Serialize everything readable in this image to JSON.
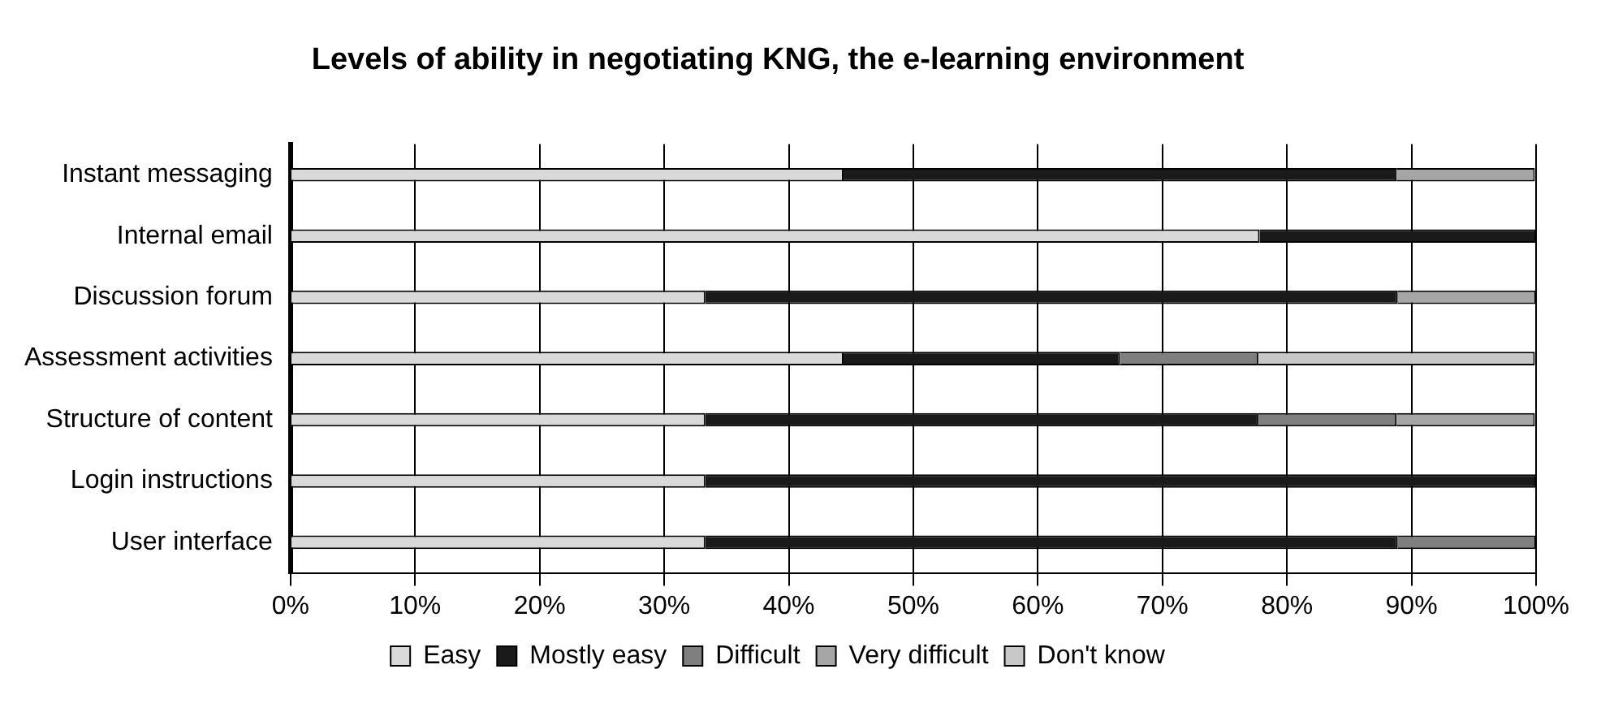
{
  "chart_data": {
    "type": "bar",
    "title": "Levels of ability in negotiating KNG, the e-learning environment",
    "orientation": "horizontal",
    "stacked": true,
    "categories": [
      "Instant messaging",
      "Internal email",
      "Discussion forum",
      "Assessment activities",
      "Structure of content",
      "Login instructions",
      "User interface"
    ],
    "series": [
      {
        "name": "Easy",
        "color": "#d9d9d9",
        "values": [
          44.4,
          77.8,
          33.3,
          44.4,
          33.3,
          33.3,
          33.3
        ]
      },
      {
        "name": "Mostly easy",
        "color": "#1a1a1a",
        "values": [
          44.4,
          22.2,
          55.6,
          22.2,
          44.4,
          66.7,
          55.6
        ]
      },
      {
        "name": "Difficult",
        "color": "#7f7f7f",
        "values": [
          0,
          0,
          0,
          11.1,
          11.1,
          0,
          11.1
        ]
      },
      {
        "name": "Very difficult",
        "color": "#a6a6a6",
        "values": [
          11.1,
          0,
          11.1,
          0,
          11.1,
          0,
          0
        ]
      },
      {
        "name": "Don't know",
        "color": "#c8c8c8",
        "values": [
          0,
          0,
          0,
          22.2,
          0,
          0,
          0
        ]
      }
    ],
    "xlim": [
      0,
      100
    ],
    "xticks": [
      {
        "value": 0,
        "label": "0%"
      },
      {
        "value": 10,
        "label": "10%"
      },
      {
        "value": 20,
        "label": "20%"
      },
      {
        "value": 30,
        "label": "30%"
      },
      {
        "value": 40,
        "label": "40%"
      },
      {
        "value": 50,
        "label": "50%"
      },
      {
        "value": 60,
        "label": "60%"
      },
      {
        "value": 70,
        "label": "70%"
      },
      {
        "value": 80,
        "label": "80%"
      },
      {
        "value": 90,
        "label": "90%"
      },
      {
        "value": 100,
        "label": "100%"
      }
    ],
    "grid": "x",
    "legend": "bottom"
  }
}
